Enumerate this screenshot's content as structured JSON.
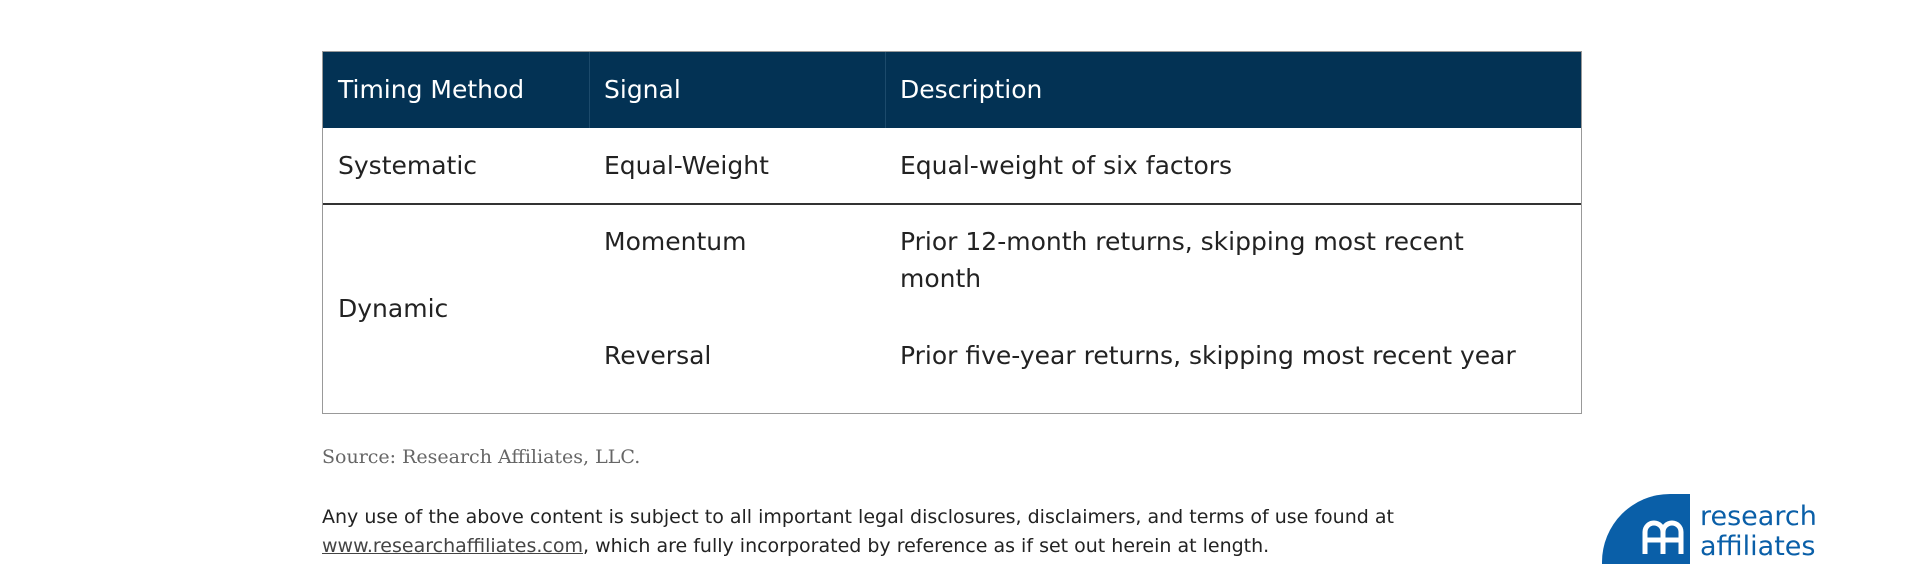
{
  "table": {
    "headers": [
      "Timing Method",
      "Signal",
      "Description"
    ],
    "rows": [
      {
        "method": "Systematic",
        "signal": "Equal-Weight",
        "description": "Equal-weight of six factors"
      },
      {
        "method": "Dynamic",
        "signal": "Momentum",
        "description": "Prior 12-month returns, skipping most recent month"
      },
      {
        "method": "",
        "signal": "Reversal",
        "description": "Prior five-year returns, skipping most recent year"
      }
    ]
  },
  "source": "Source: Research Affiliates, LLC.",
  "disclaimer": {
    "line1": "Any use of the above content is subject to all important legal disclosures, disclaimers, and terms of use found at",
    "link": "www.researchaffiliates.com",
    "line2_rest": ", which are fully incorporated by reference as if set out herein at length."
  },
  "logo": {
    "line1": "research",
    "line2": "affiliates",
    "tm": "™",
    "color": "#0a5fa8"
  },
  "colors": {
    "header_bg": "#033254"
  }
}
